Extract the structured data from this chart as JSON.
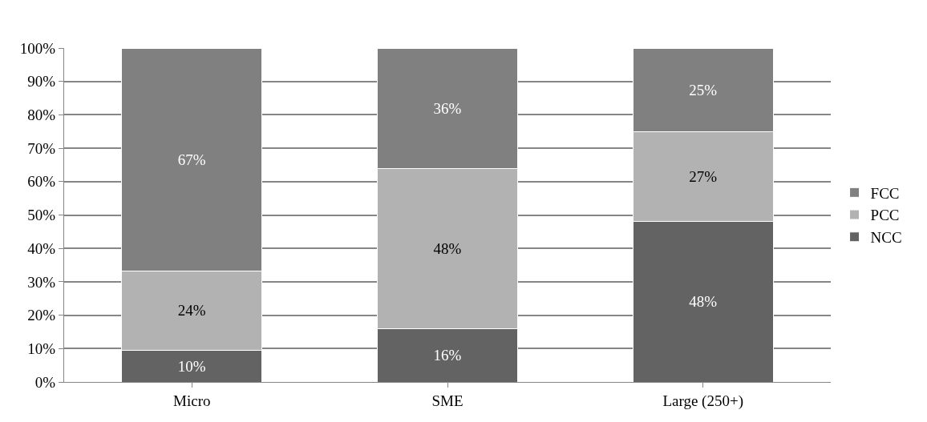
{
  "chart_data": {
    "type": "bar",
    "stacked": true,
    "categories": [
      "Micro",
      "SME",
      "Large (250+)"
    ],
    "series": [
      {
        "name": "NCC",
        "color": "#636363",
        "values": [
          9.5,
          16,
          48
        ],
        "value_labels": [
          "10%",
          "16%",
          "48%"
        ]
      },
      {
        "name": "PCC",
        "color": "#b2b2b2",
        "values": [
          23.7,
          48,
          27
        ],
        "value_labels": [
          "24%",
          "48%",
          "27%"
        ]
      },
      {
        "name": "FCC",
        "color": "#808080",
        "values": [
          66.8,
          36,
          25
        ],
        "value_labels": [
          "67%",
          "36%",
          "25%"
        ]
      }
    ],
    "ylim": [
      0,
      100
    ],
    "yticks": [
      {
        "value": 0,
        "label": "0%"
      },
      {
        "value": 10,
        "label": "10%"
      },
      {
        "value": 20,
        "label": "20%"
      },
      {
        "value": 30,
        "label": "30%"
      },
      {
        "value": 40,
        "label": "40%"
      },
      {
        "value": 50,
        "label": "50%"
      },
      {
        "value": 60,
        "label": "60%"
      },
      {
        "value": 70,
        "label": "70%"
      },
      {
        "value": 80,
        "label": "80%"
      },
      {
        "value": 90,
        "label": "90%"
      },
      {
        "value": 100,
        "label": "100%"
      }
    ],
    "grid": "y",
    "legend": "right"
  }
}
